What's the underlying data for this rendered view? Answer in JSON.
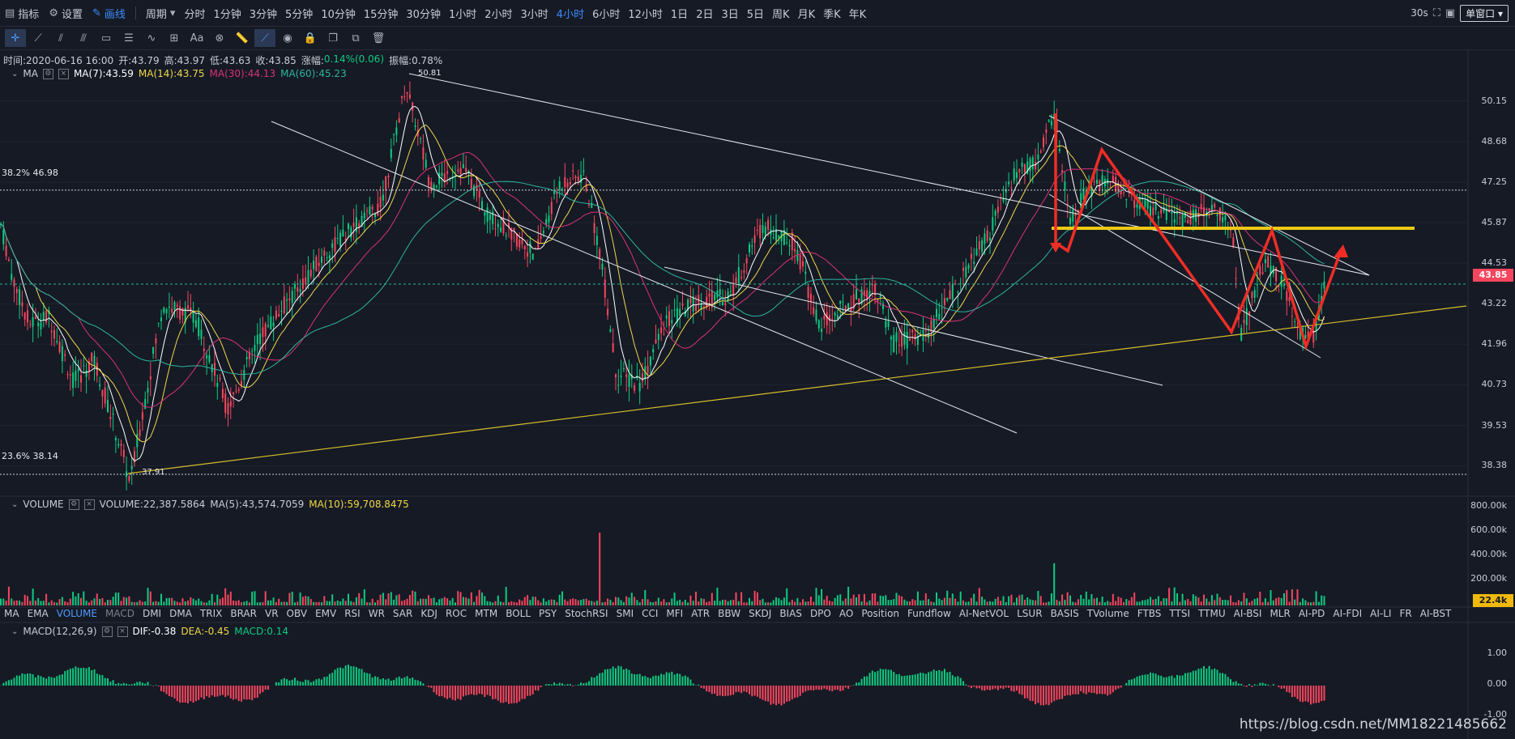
{
  "top_toolbar": {
    "indicator": "指标",
    "settings": "设置",
    "draw": "画线",
    "period": "周期",
    "intervals": [
      "分时",
      "1分钟",
      "3分钟",
      "5分钟",
      "10分钟",
      "15分钟",
      "30分钟",
      "1小时",
      "2小时",
      "3小时",
      "4小时",
      "6小时",
      "12小时",
      "1日",
      "2日",
      "3日",
      "5日",
      "周K",
      "月K",
      "季K",
      "年K"
    ],
    "active_interval": "4小时",
    "refresh": "30s",
    "window_mode": "单窗口"
  },
  "ohlc": {
    "time": "时间:2020-06-16 16:00",
    "open": "开:43.79",
    "high": "高:43.97",
    "low": "低:43.63",
    "close": "收:43.85",
    "change_label": "涨幅:",
    "change_value": "0.14%(0.06)",
    "amp": "振幅:0.78%"
  },
  "ma_legend": {
    "name": "MA",
    "ma7": "MA(7):43.59",
    "ma14": "MA(14):43.75",
    "ma30": "MA(30):44.13",
    "ma60": "MA(60):45.23"
  },
  "volume_legend": {
    "name": "VOLUME",
    "vol": "VOLUME:22,387.5864",
    "ma5": "MA(5):43,574.7059",
    "ma10": "MA(10):59,708.8475"
  },
  "macd_legend": {
    "name": "MACD(12,26,9)",
    "dif": "DIF:-0.38",
    "dea": "DEA:-0.45",
    "macd": "MACD:0.14"
  },
  "indicator_tabs": [
    "MA",
    "EMA",
    "VOLUME",
    "MACD",
    "DMI",
    "DMA",
    "TRIX",
    "BRAR",
    "VR",
    "OBV",
    "EMV",
    "RSI",
    "WR",
    "SAR",
    "KDJ",
    "ROC",
    "MTM",
    "BOLL",
    "PSY",
    "StochRSI",
    "SMI",
    "CCI",
    "MFI",
    "ATR",
    "BBW",
    "SKDJ",
    "BIAS",
    "DPO",
    "AO",
    "Position",
    "Fundflow",
    "AI-NetVOL",
    "LSUR",
    "BASIS",
    "TVolume",
    "FTBS",
    "TTSI",
    "TTMU",
    "AI-BSI",
    "MLR",
    "AI-PD",
    "AI-FDI",
    "AI-LI",
    "FR",
    "AI-BST"
  ],
  "price_axis": [
    "50.15",
    "48.68",
    "47.25",
    "45.87",
    "44.53",
    "43.22",
    "41.96",
    "40.73",
    "39.53",
    "38.38"
  ],
  "current_price": "43.85",
  "fib_levels": [
    {
      "label": "38.2% 46.98",
      "price": 46.98
    },
    {
      "label": "23.6% 38.14",
      "price": 38.14
    }
  ],
  "high_marker": "50.81",
  "low_marker": "37.91",
  "volume_axis": [
    "800.00k",
    "600.00k",
    "400.00k",
    "200.00k"
  ],
  "volume_current": "22.4k",
  "macd_axis": [
    "1.00",
    "0.00",
    "-1.00"
  ],
  "watermark": "https://blog.csdn.net/MM18221485662",
  "colors": {
    "up": "#0ecb81",
    "down": "#f6465d",
    "ma7": "#ffffff",
    "ma14": "#f0d74a",
    "ma30": "#d9317a",
    "ma60": "#2bb5a0",
    "annotation_red": "#f02d24",
    "annotation_yellow": "#f0c814"
  }
}
